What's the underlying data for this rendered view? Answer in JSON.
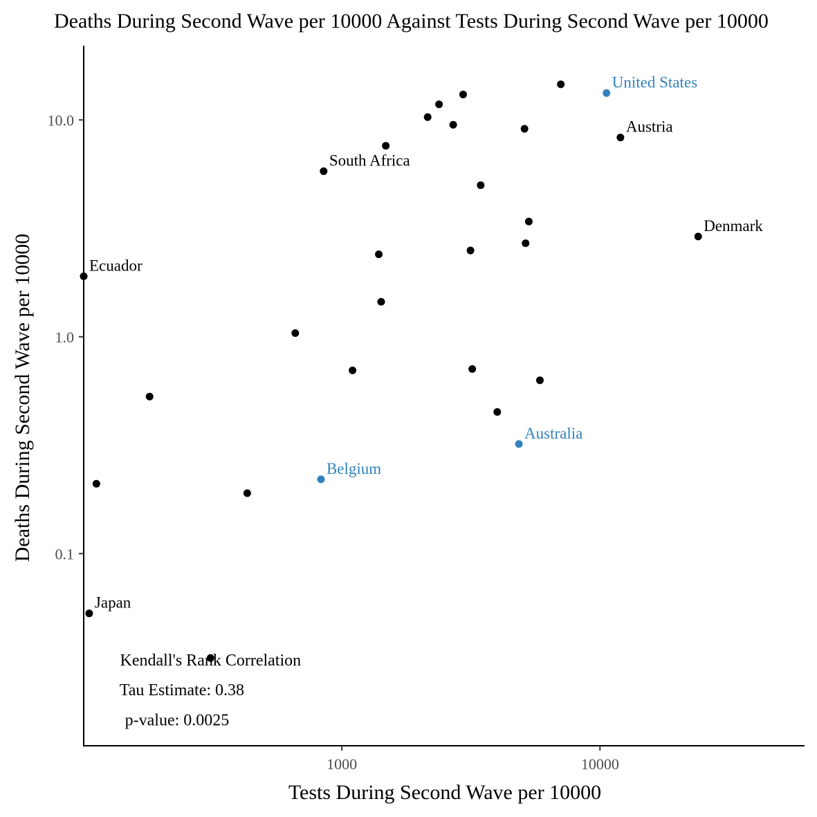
{
  "chart_data": {
    "type": "scatter",
    "title": "Deaths During Second Wave per 10000 Against Tests During Second Wave per 10000",
    "xlabel": "Tests During Second Wave per 10000",
    "ylabel": "Deaths During Second Wave per 10000",
    "x_scale": "log10",
    "y_scale": "log10",
    "xlim": [
      100,
      62000
    ],
    "ylim": [
      0.013,
      22
    ],
    "grid": false,
    "legend": "none",
    "x_ticks": [
      {
        "value": 1000,
        "label": "1000"
      },
      {
        "value": 10000,
        "label": "10000"
      }
    ],
    "y_ticks": [
      {
        "value": 0.1,
        "label": "0.1"
      },
      {
        "value": 1,
        "label": "1.0"
      },
      {
        "value": 10,
        "label": "10.0"
      }
    ],
    "colors": {
      "default": "#000000",
      "highlight": "#3182bd"
    },
    "points": [
      {
        "x": 10600,
        "y": 13.3,
        "label": "United States",
        "highlight": true
      },
      {
        "x": 7050,
        "y": 14.6,
        "label": "",
        "highlight": false
      },
      {
        "x": 12000,
        "y": 8.3,
        "label": "Austria",
        "highlight": false
      },
      {
        "x": 2950,
        "y": 13.1,
        "label": "",
        "highlight": false
      },
      {
        "x": 2380,
        "y": 11.8,
        "label": "",
        "highlight": false
      },
      {
        "x": 2150,
        "y": 10.3,
        "label": "",
        "highlight": false
      },
      {
        "x": 2700,
        "y": 9.5,
        "label": "",
        "highlight": false
      },
      {
        "x": 5100,
        "y": 9.1,
        "label": "",
        "highlight": false
      },
      {
        "x": 1480,
        "y": 7.6,
        "label": "",
        "highlight": false
      },
      {
        "x": 850,
        "y": 5.8,
        "label": "South Africa",
        "highlight": false
      },
      {
        "x": 3450,
        "y": 5.0,
        "label": "",
        "highlight": false
      },
      {
        "x": 5300,
        "y": 3.4,
        "label": "",
        "highlight": false
      },
      {
        "x": 24000,
        "y": 2.9,
        "label": "Denmark",
        "highlight": false
      },
      {
        "x": 5150,
        "y": 2.7,
        "label": "",
        "highlight": false
      },
      {
        "x": 3150,
        "y": 2.5,
        "label": "",
        "highlight": false
      },
      {
        "x": 1390,
        "y": 2.4,
        "label": "",
        "highlight": false
      },
      {
        "x": 100,
        "y": 1.9,
        "label": "Ecuador",
        "highlight": false
      },
      {
        "x": 1420,
        "y": 1.45,
        "label": "",
        "highlight": false
      },
      {
        "x": 660,
        "y": 1.04,
        "label": "",
        "highlight": false
      },
      {
        "x": 1100,
        "y": 0.7,
        "label": "",
        "highlight": false
      },
      {
        "x": 3200,
        "y": 0.71,
        "label": "",
        "highlight": false
      },
      {
        "x": 5850,
        "y": 0.63,
        "label": "",
        "highlight": false
      },
      {
        "x": 180,
        "y": 0.53,
        "label": "",
        "highlight": false
      },
      {
        "x": 4000,
        "y": 0.45,
        "label": "",
        "highlight": false
      },
      {
        "x": 4850,
        "y": 0.32,
        "label": "Australia",
        "highlight": true
      },
      {
        "x": 830,
        "y": 0.22,
        "label": "Belgium",
        "highlight": true
      },
      {
        "x": 112,
        "y": 0.21,
        "label": "",
        "highlight": false
      },
      {
        "x": 430,
        "y": 0.19,
        "label": "",
        "highlight": false
      },
      {
        "x": 105,
        "y": 0.053,
        "label": "Japan",
        "highlight": false
      },
      {
        "x": 310,
        "y": 0.033,
        "label": "",
        "highlight": false
      }
    ],
    "annotations": [
      {
        "text": "Kendall's Rank Correlation",
        "x": 310,
        "y": 0.0323
      },
      {
        "text": "Tau Estimate: 0.38",
        "x": 240,
        "y": 0.0236
      },
      {
        "text": "p-value: 0.0025",
        "x": 230,
        "y": 0.0171
      }
    ]
  }
}
